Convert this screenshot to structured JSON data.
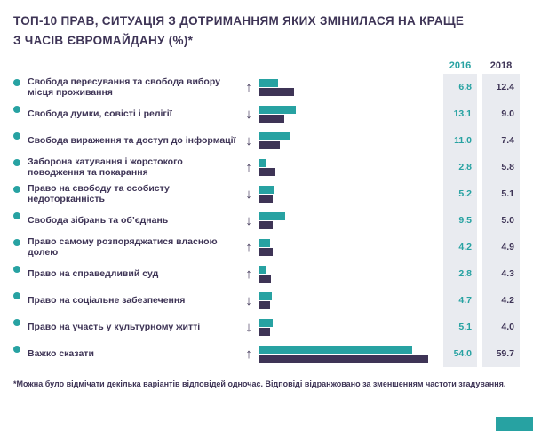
{
  "title": {
    "line1": "ТОП-10 ПРАВ, СИТУАЦІЯ З ДОТРИМАННЯМ ЯКИХ ЗМІНИЛАСЯ НА КРАЩЕ",
    "line2": "З ЧАСІВ ЄВРОМАЙДАНУ (%)*"
  },
  "legend": {
    "col2016": "2016",
    "col2018": "2018"
  },
  "footnote": "*Можна було відмічати декілька варіантів відповідей одночас. Відповіді відранжовано за зменшенням частоти згадування.",
  "colors": {
    "teal": "#27A2A2",
    "purple": "#3E3456",
    "band": "#E9EBF0"
  },
  "chart_data": {
    "type": "bar",
    "orientation": "horizontal",
    "title": "ТОП-10 ПРАВ, СИТУАЦІЯ З ДОТРИМАННЯМ ЯКИХ ЗМІНИЛАСЯ НА КРАЩЕ З ЧАСІВ ЄВРОМАЙДАНУ (%)*",
    "categories": [
      "Свобода пересування та свобода вибору місця проживання",
      "Свобода думки, совісті і релігії",
      "Свобода вираження та доступ до інформації",
      "Заборона катування і жорстокого поводження та покарання",
      "Право на свободу та особисту недоторканність",
      "Свобода зібрань та об’єднань",
      "Право самому розпоряджатися власною долею",
      "Право на справедливий суд",
      "Право на соціальне забезпечення",
      "Право на участь у культурному житті",
      "Важко сказати"
    ],
    "series": [
      {
        "name": "2016",
        "color": "#27A2A2",
        "values": [
          6.8,
          13.1,
          11.0,
          2.8,
          5.2,
          9.5,
          4.2,
          2.8,
          4.7,
          5.1,
          54.0
        ]
      },
      {
        "name": "2018",
        "color": "#3E3456",
        "values": [
          12.4,
          9.0,
          7.4,
          5.8,
          5.1,
          5.0,
          4.9,
          4.3,
          4.2,
          4.0,
          59.7
        ]
      }
    ],
    "trend": [
      "up",
      "down",
      "down",
      "up",
      "down",
      "down",
      "up",
      "up",
      "down",
      "down",
      "up"
    ],
    "xlim": [
      0,
      65
    ],
    "value_labels": true,
    "legend_position": "top-right",
    "grid": false
  }
}
